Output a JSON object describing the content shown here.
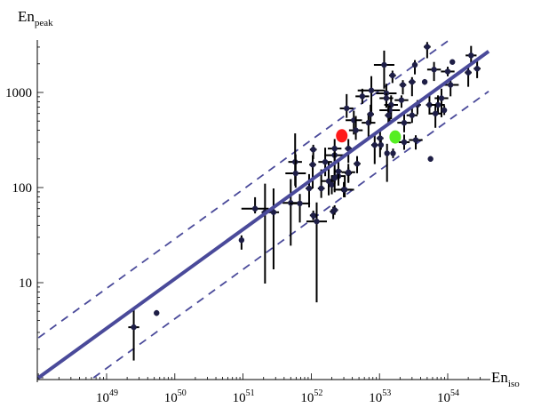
{
  "chart_data": {
    "type": "scatter",
    "title": "",
    "xlabel": "En",
    "xlabel_sub": "iso",
    "ylabel": "En",
    "ylabel_sub": "peak",
    "xscale": "log",
    "yscale": "log",
    "xlim": [
      1e+48,
      4e+54
    ],
    "ylim": [
      1,
      3600
    ],
    "grid": false,
    "x_ticks": [
      {
        "base": "10",
        "exp": "49",
        "value": 1e+49
      },
      {
        "base": "10",
        "exp": "50",
        "value": 1e+50
      },
      {
        "base": "10",
        "exp": "51",
        "value": 1e+51
      },
      {
        "base": "10",
        "exp": "52",
        "value": 1e+52
      },
      {
        "base": "10",
        "exp": "53",
        "value": 1e+53
      },
      {
        "base": "10",
        "exp": "54",
        "value": 1e+54
      }
    ],
    "y_ticks": [
      {
        "label": "10",
        "value": 10
      },
      {
        "label": "100",
        "value": 100
      },
      {
        "label": "1000",
        "value": 1000
      }
    ],
    "point_format": "[Eiso, Epeak, xerr_dex, yerr_low_dex, yerr_high_dex]",
    "points": [
      [
        2.5e+49,
        3.4,
        0.08,
        0.35,
        0.2
      ],
      [
        5.4e+49,
        4.8,
        0.03,
        0.03,
        0.03
      ],
      [
        9.5e+50,
        28,
        0.03,
        0.1,
        0.05
      ],
      [
        1.5e+51,
        60,
        0.2,
        0.05,
        0.12
      ],
      [
        2.1e+51,
        55,
        0.05,
        0.75,
        0.3
      ],
      [
        2.8e+51,
        55,
        0.08,
        0.6,
        0.25
      ],
      [
        5e+51,
        69,
        0.12,
        0.45,
        0.25
      ],
      [
        6.8e+51,
        68,
        0.15,
        0.2,
        0.1
      ],
      [
        5.8e+51,
        186,
        0.1,
        0.25,
        0.3
      ],
      [
        5.9e+51,
        141,
        0.15,
        0.15,
        0.2
      ],
      [
        1.07e+52,
        251,
        0.05,
        0.1,
        0.05
      ],
      [
        1.05e+52,
        174,
        0.05,
        0.25,
        0.1
      ],
      [
        9.3e+51,
        98,
        0.05,
        0.2,
        0.15
      ],
      [
        1.07e+52,
        51,
        0.05,
        0.05,
        0.05
      ],
      [
        1.2e+52,
        44,
        0.15,
        0.85,
        0.2
      ],
      [
        1.6e+52,
        186,
        0.1,
        0.15,
        0.15
      ],
      [
        1.4e+52,
        98,
        0.05,
        0.1,
        0.2
      ],
      [
        1.8e+52,
        117,
        0.1,
        0.15,
        0.2
      ],
      [
        2.1e+52,
        56,
        0.05,
        0.08,
        0.05
      ],
      [
        2.2e+52,
        219,
        0.15,
        0.3,
        0.1
      ],
      [
        3e+52,
        95,
        0.15,
        0.08,
        0.08
      ],
      [
        3.5e+52,
        141,
        0.05,
        0.1,
        0.1
      ],
      [
        2.5e+52,
        132,
        0.1,
        0.1,
        0.1
      ],
      [
        2e+52,
        107,
        0.05,
        0.1,
        0.1
      ],
      [
        5e+53,
        3020,
        0.05,
        0.12,
        0.05
      ],
      [
        2.2e+54,
        2450,
        0.08,
        0.1,
        0.1
      ],
      [
        1.17e+54,
        2090,
        0.02,
        0.02,
        0.02
      ],
      [
        2.7e+54,
        1780,
        0.05,
        0.1,
        0.08
      ],
      [
        2e+54,
        1620,
        0.05,
        0.15,
        0.05
      ],
      [
        1e+54,
        1660,
        0.1,
        0.05,
        0.05
      ],
      [
        6.3e+53,
        1740,
        0.1,
        0.12,
        0.08
      ],
      [
        3.3e+53,
        1950,
        0.03,
        0.1,
        0.05
      ],
      [
        1.17e+53,
        1950,
        0.15,
        0.25,
        0.15
      ],
      [
        1.55e+53,
        1510,
        0.05,
        0.08,
        0.05
      ],
      [
        3e+53,
        1290,
        0.05,
        0.15,
        0.05
      ],
      [
        4.6e+53,
        1290,
        0.03,
        0.03,
        0.03
      ],
      [
        1.1e+54,
        1200,
        0.12,
        0.12,
        0.08
      ],
      [
        2.2e+53,
        1200,
        0.05,
        0.1,
        0.05
      ],
      [
        7.6e+52,
        1050,
        0.2,
        0.25,
        0.15
      ],
      [
        1.26e+53,
        980,
        0.15,
        0.15,
        0.1
      ],
      [
        5.6e+52,
        910,
        0.1,
        0.08,
        0.08
      ],
      [
        2.1e+53,
        830,
        0.1,
        0.08,
        0.05
      ],
      [
        1.26e+53,
        870,
        0.1,
        0.1,
        0.05
      ],
      [
        8.1e+53,
        870,
        0.1,
        0.2,
        0.1
      ],
      [
        5.4e+53,
        740,
        0.05,
        0.1,
        0.1
      ],
      [
        7.2e+53,
        740,
        0.1,
        0.1,
        0.1
      ],
      [
        8.9e+53,
        650,
        0.03,
        0.05,
        0.05
      ],
      [
        6.6e+53,
        600,
        0.1,
        0.15,
        0.1
      ],
      [
        1.48e+53,
        740,
        0.1,
        0.15,
        0.1
      ],
      [
        1.41e+53,
        650,
        0.15,
        0.15,
        0.05
      ],
      [
        3.6e+53,
        740,
        0.05,
        0.1,
        0.05
      ],
      [
        3e+53,
        575,
        0.08,
        0.08,
        0.1
      ],
      [
        3.3e+52,
        680,
        0.1,
        0.1,
        0.15
      ],
      [
        4.2e+52,
        510,
        0.12,
        0.15,
        0.1
      ],
      [
        6.9e+52,
        480,
        0.1,
        0.15,
        0.1
      ],
      [
        7.4e+52,
        590,
        0.05,
        0.1,
        0.1
      ],
      [
        2.3e+53,
        480,
        0.1,
        0.1,
        0.1
      ],
      [
        1.35e+53,
        575,
        0.05,
        0.1,
        0.1
      ],
      [
        4.5e+52,
        400,
        0.1,
        0.1,
        0.15
      ],
      [
        1.02e+53,
        330,
        0.05,
        0.2,
        0.1
      ],
      [
        3.4e+53,
        316,
        0.1,
        0.1,
        0.05
      ],
      [
        2.3e+53,
        300,
        0.08,
        0.08,
        0.08
      ],
      [
        8.5e+52,
        280,
        0.05,
        0.2,
        0.1
      ],
      [
        1.05e+53,
        280,
        0.03,
        0.05,
        0.05
      ],
      [
        2.2e+52,
        257,
        0.1,
        0.15,
        0.1
      ],
      [
        3.5e+52,
        257,
        0.05,
        0.15,
        0.1
      ],
      [
        1.29e+53,
        229,
        0.03,
        0.3,
        0.1
      ],
      [
        1.58e+53,
        229,
        0.03,
        0.05,
        0.05
      ],
      [
        4.7e+52,
        178,
        0.05,
        0.1,
        0.08
      ],
      [
        2.5e+52,
        148,
        0.05,
        0.1,
        0.1
      ],
      [
        3.5e+52,
        145,
        0.1,
        0.1,
        0.05
      ],
      [
        5.6e+53,
        200,
        0.03,
        0.03,
        0.03
      ],
      [
        2.2e+52,
        126,
        0.05,
        0.15,
        0.1
      ],
      [
        3.1e+52,
        95,
        0.1,
        0.08,
        0.15
      ],
      [
        2.2e+52,
        58,
        0.05,
        0.05,
        0.05
      ]
    ],
    "highlighted_points": [
      {
        "x": 2.8e+52,
        "y": 350,
        "color": "#ff1a1a"
      },
      {
        "x": 1.7e+53,
        "y": 340,
        "color": "#55ee22"
      }
    ],
    "fit_line": {
      "slope": 0.52,
      "y_at_1e48": 1,
      "color": "#4a4a9a",
      "style": "solid"
    },
    "scatter_band_dex": 0.42,
    "band_style": "dashed",
    "point_color": "#1e1e46"
  }
}
